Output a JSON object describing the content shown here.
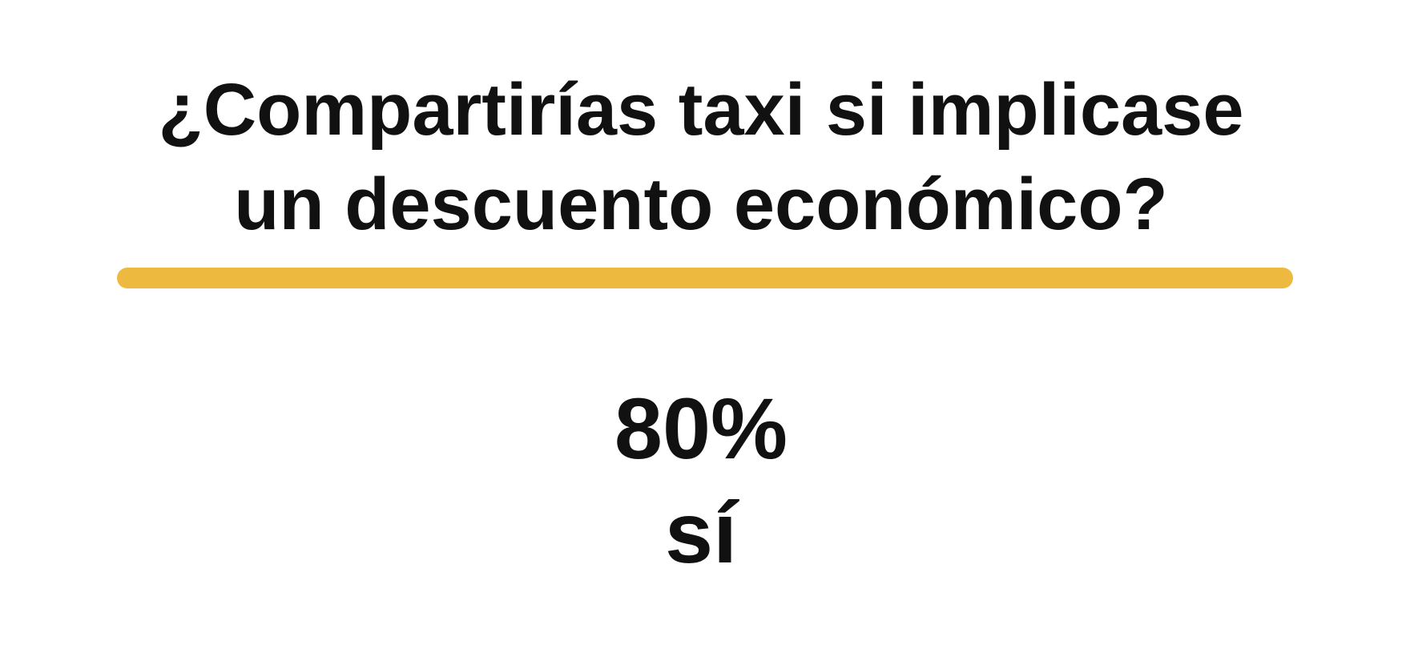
{
  "question": {
    "line1": "¿Compartirías taxi si implicase",
    "line2": "un descuento económico?"
  },
  "divider": {
    "color": "#EDBA3F"
  },
  "result": {
    "percentage": "80%",
    "answer": "sí"
  }
}
